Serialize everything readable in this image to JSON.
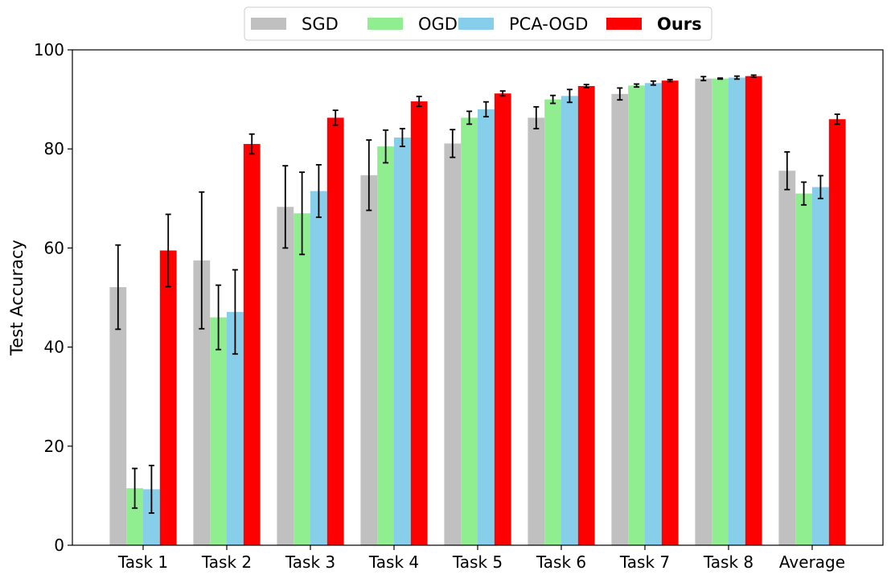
{
  "chart_data": {
    "type": "bar",
    "title": "",
    "xlabel": "",
    "ylabel": "Test Accuracy",
    "ylim": [
      0,
      100
    ],
    "yticks": [
      0,
      20,
      40,
      60,
      80,
      100
    ],
    "grid": false,
    "legend_position": "top-center",
    "categories": [
      "Task 1",
      "Task 2",
      "Task 3",
      "Task 4",
      "Task 5",
      "Task 6",
      "Task 7",
      "Task 8",
      "Average"
    ],
    "series": [
      {
        "name": "SGD",
        "color": "#c0c0c0",
        "bold": false,
        "values": [
          52.1,
          57.5,
          68.3,
          74.7,
          81.1,
          86.3,
          91.1,
          94.2,
          75.6
        ],
        "errors": [
          8.5,
          13.8,
          8.3,
          7.1,
          2.8,
          2.2,
          1.2,
          0.4,
          3.8
        ]
      },
      {
        "name": "OGD",
        "color": "#90ee90",
        "bold": false,
        "values": [
          11.5,
          46.0,
          67.0,
          80.5,
          86.3,
          90.0,
          92.8,
          94.2,
          71.0
        ],
        "errors": [
          4.0,
          6.5,
          8.3,
          3.3,
          1.3,
          0.8,
          0.3,
          0.1,
          2.3
        ]
      },
      {
        "name": "PCA-OGD",
        "color": "#87ceeb",
        "bold": false,
        "values": [
          11.3,
          47.1,
          71.5,
          82.3,
          88.0,
          90.7,
          93.3,
          94.4,
          72.3
        ],
        "errors": [
          4.8,
          8.5,
          5.3,
          1.8,
          1.5,
          1.3,
          0.4,
          0.3,
          2.3
        ]
      },
      {
        "name": "Ours",
        "color": "#ff0000",
        "bold": true,
        "values": [
          59.5,
          81.0,
          86.3,
          89.6,
          91.2,
          92.7,
          93.8,
          94.7,
          86.0
        ],
        "errors": [
          7.3,
          2.0,
          1.5,
          1.0,
          0.5,
          0.3,
          0.2,
          0.2,
          1.0
        ]
      }
    ]
  }
}
